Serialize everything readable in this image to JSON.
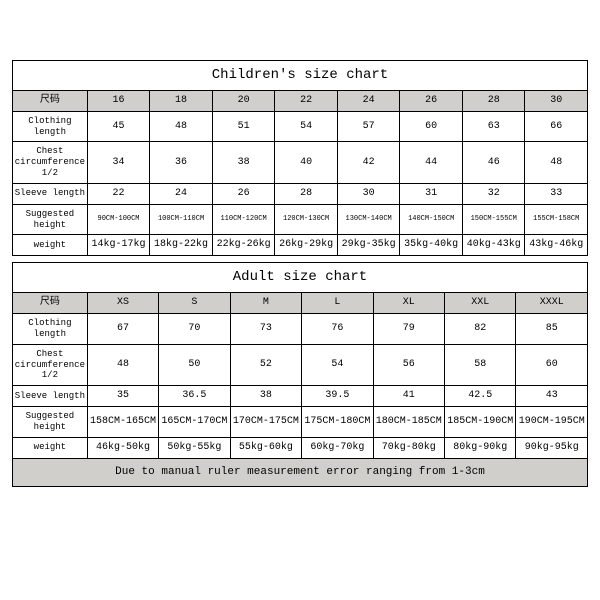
{
  "children": {
    "title": "Children's size chart",
    "label_header": "尺码",
    "sizes": [
      "16",
      "18",
      "20",
      "22",
      "24",
      "26",
      "28",
      "30"
    ],
    "rows": [
      {
        "label": "Clothing length",
        "vals": [
          "45",
          "48",
          "51",
          "54",
          "57",
          "60",
          "63",
          "66"
        ],
        "small": false
      },
      {
        "label": "Chest circumference 1/2",
        "vals": [
          "34",
          "36",
          "38",
          "40",
          "42",
          "44",
          "46",
          "48"
        ],
        "small": false
      },
      {
        "label": "Sleeve length",
        "vals": [
          "22",
          "24",
          "26",
          "28",
          "30",
          "31",
          "32",
          "33"
        ],
        "small": false
      },
      {
        "label": "Suggested height",
        "vals": [
          "90CM-100CM",
          "100CM-110CM",
          "110CM-120CM",
          "120CM-130CM",
          "130CM-140CM",
          "140CM-150CM",
          "150CM-155CM",
          "155CM-158CM"
        ],
        "small": true
      },
      {
        "label": "weight",
        "vals": [
          "14kg-17kg",
          "18kg-22kg",
          "22kg-26kg",
          "26kg-29kg",
          "29kg-35kg",
          "35kg-40kg",
          "40kg-43kg",
          "43kg-46kg"
        ],
        "small": false
      }
    ]
  },
  "adult": {
    "title": "Adult size chart",
    "label_header": "尺码",
    "sizes": [
      "XS",
      "S",
      "M",
      "L",
      "XL",
      "XXL",
      "XXXL"
    ],
    "rows": [
      {
        "label": "Clothing length",
        "vals": [
          "67",
          "70",
          "73",
          "76",
          "79",
          "82",
          "85"
        ],
        "small": false
      },
      {
        "label": "Chest circumference 1/2",
        "vals": [
          "48",
          "50",
          "52",
          "54",
          "56",
          "58",
          "60"
        ],
        "small": false
      },
      {
        "label": "Sleeve length",
        "vals": [
          "35",
          "36.5",
          "38",
          "39.5",
          "41",
          "42.5",
          "43"
        ],
        "small": false
      },
      {
        "label": "Suggested height",
        "vals": [
          "158CM-165CM",
          "165CM-170CM",
          "170CM-175CM",
          "175CM-180CM",
          "180CM-185CM",
          "185CM-190CM",
          "190CM-195CM"
        ],
        "small": false
      },
      {
        "label": "weight",
        "vals": [
          "46kg-50kg",
          "50kg-55kg",
          "55kg-60kg",
          "60kg-70kg",
          "70kg-80kg",
          "80kg-90kg",
          "90kg-95kg"
        ],
        "small": false
      }
    ],
    "note": "Due to manual ruler measurement error ranging from 1-3cm"
  },
  "colors": {
    "header_bg": "#d0cfcc",
    "border": "#000000",
    "page_bg": "#ffffff"
  }
}
